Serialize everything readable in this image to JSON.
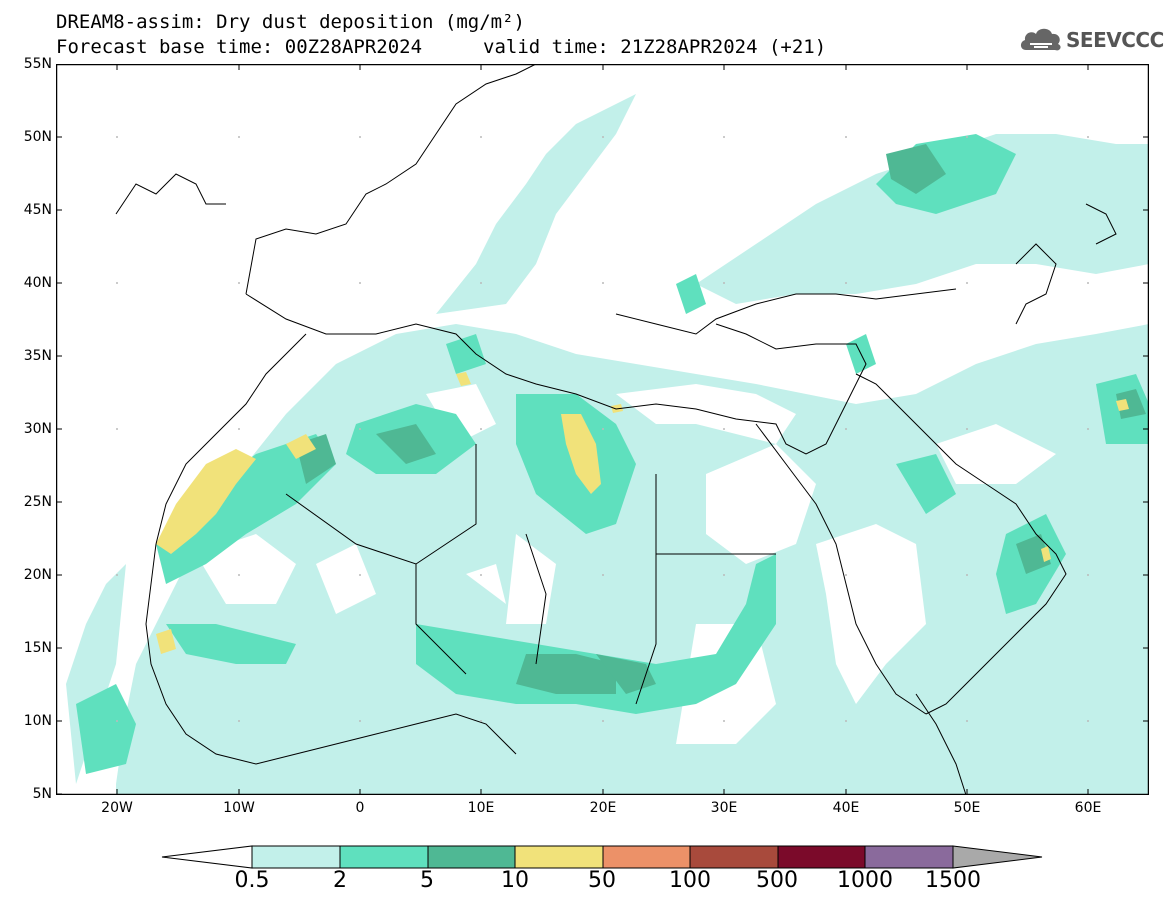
{
  "header": {
    "title_line_1": "DREAM8-assim: Dry dust deposition (mg/m²)",
    "title_line_2": "Forecast base time: 00Z28APR2024",
    "valid_time": "valid time: 21Z28APR2024 (+21)"
  },
  "logo": {
    "text": "SEEVCCC",
    "icon": "cloud-logo-icon"
  },
  "map": {
    "projection": "lat-lon",
    "lat_range": [
      5,
      55
    ],
    "lon_range": [
      -25,
      65
    ],
    "lat_labels": [
      "55N",
      "50N",
      "45N",
      "40N",
      "35N",
      "30N",
      "25N",
      "20N",
      "15N",
      "10N",
      "5N"
    ],
    "lon_labels": [
      "20W",
      "10W",
      "0",
      "10E",
      "20E",
      "30E",
      "40E",
      "50E",
      "60E"
    ]
  },
  "colorbar": {
    "levels": [
      "0.5",
      "2",
      "5",
      "10",
      "50",
      "100",
      "500",
      "1000",
      "1500"
    ],
    "colors": [
      "#c2f0ea",
      "#5fe0be",
      "#4fb894",
      "#f1e27a",
      "#ec9168",
      "#a84a3c",
      "#7b0a2a",
      "#8a6a9c"
    ],
    "under_color": "#ffffff",
    "over_color": "#a9a9a9"
  }
}
